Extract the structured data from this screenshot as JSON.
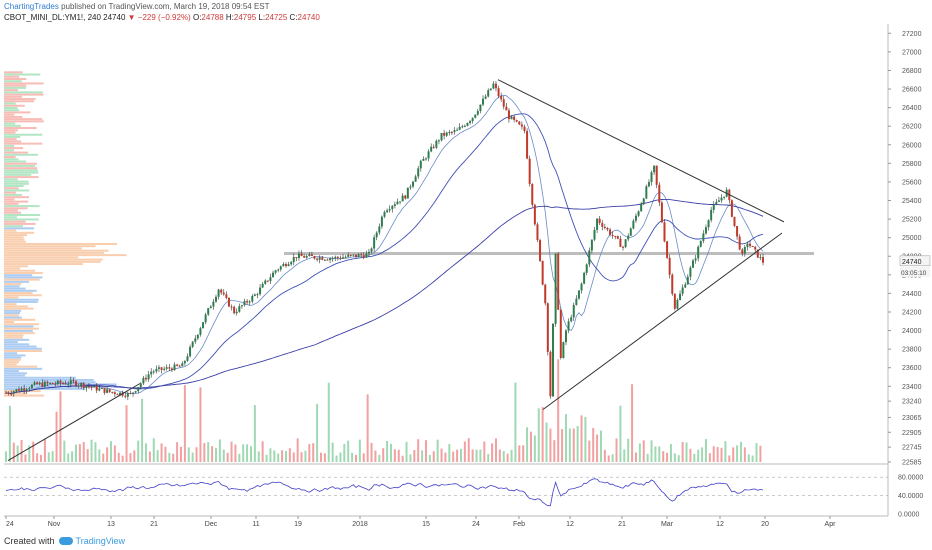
{
  "header": {
    "author": "ChartingTrades",
    "published": "published on TradingView.com, March 19, 2018 09:54 EST",
    "symbol": "CBOT_MINI_DL:YM1!, 240",
    "last": "24740",
    "change_arrow": "▼",
    "change": "−229 (−0.92%)",
    "o_label": "O:",
    "o": "24788",
    "h_label": "H:",
    "h": "24795",
    "l_label": "L:",
    "l": "24725",
    "c_label": "C:",
    "c": "24740"
  },
  "footer": {
    "created_with": "Created with",
    "brand": "TradingView"
  },
  "colors": {
    "up": "#2e7d4f",
    "down": "#c0392b",
    "ma": "#3f51b5",
    "trend": "#333333",
    "vol_up": "#9fd9b4",
    "vol_down": "#f2a0a0",
    "profile_up": "#a5e0b8",
    "profile_down": "#f6b0a8",
    "profile_val": "#9ec3f0",
    "profile_orange": "#f7c6a0"
  },
  "chart_data": {
    "type": "line",
    "title": "",
    "x_ticks": [
      "24",
      "Nov",
      "13",
      "21",
      "Dec",
      "11",
      "19",
      "2018",
      "15",
      "24",
      "Feb",
      "12",
      "21",
      "Mar",
      "12",
      "20",
      "Apr"
    ],
    "y_ticks": [
      27200,
      27000,
      26800,
      26600,
      26400,
      26200,
      26000,
      25800,
      25600,
      25400,
      25200,
      25000,
      24800,
      24600,
      24400,
      24200,
      24000,
      23800,
      23600,
      23400,
      23240,
      23065,
      22905,
      22745,
      22585
    ],
    "ylim": [
      22585,
      27300
    ],
    "last_price_label": "24740",
    "countdown_label": "03:05:10",
    "price_path": [
      {
        "x": "Oct 24",
        "y": 23330
      },
      {
        "x": "Oct 30",
        "y": 23420
      },
      {
        "x": "Nov 6",
        "y": 23440
      },
      {
        "x": "Nov 13",
        "y": 23340
      },
      {
        "x": "Nov 17",
        "y": 23310
      },
      {
        "x": "Nov 21",
        "y": 23560
      },
      {
        "x": "Nov 27",
        "y": 23620
      },
      {
        "x": "Dec 1",
        "y": 24100
      },
      {
        "x": "Dec 4",
        "y": 24450
      },
      {
        "x": "Dec 7",
        "y": 24200
      },
      {
        "x": "Dec 11",
        "y": 24380
      },
      {
        "x": "Dec 15",
        "y": 24650
      },
      {
        "x": "Dec 19",
        "y": 24800
      },
      {
        "x": "Dec 26",
        "y": 24780
      },
      {
        "x": "Jan 2",
        "y": 24820
      },
      {
        "x": "Jan 5",
        "y": 25300
      },
      {
        "x": "Jan 9",
        "y": 25450
      },
      {
        "x": "Jan 12",
        "y": 25800
      },
      {
        "x": "Jan 16",
        "y": 26100
      },
      {
        "x": "Jan 19",
        "y": 26150
      },
      {
        "x": "Jan 22",
        "y": 26300
      },
      {
        "x": "Jan 26",
        "y": 26650
      },
      {
        "x": "Jan 29",
        "y": 26300
      },
      {
        "x": "Feb 1",
        "y": 26150
      },
      {
        "x": "Feb 2",
        "y": 25600
      },
      {
        "x": "Feb 5",
        "y": 24300
      },
      {
        "x": "Feb 6",
        "y": 23300
      },
      {
        "x": "Feb 7",
        "y": 24800
      },
      {
        "x": "Feb 8",
        "y": 23700
      },
      {
        "x": "Feb 9",
        "y": 24000
      },
      {
        "x": "Feb 12",
        "y": 24500
      },
      {
        "x": "Feb 15",
        "y": 25200
      },
      {
        "x": "Feb 20",
        "y": 24900
      },
      {
        "x": "Feb 23",
        "y": 25300
      },
      {
        "x": "Feb 26",
        "y": 25750
      },
      {
        "x": "Mar 1",
        "y": 24600
      },
      {
        "x": "Mar 2",
        "y": 24250
      },
      {
        "x": "Mar 6",
        "y": 24800
      },
      {
        "x": "Mar 9",
        "y": 25300
      },
      {
        "x": "Mar 12",
        "y": 25500
      },
      {
        "x": "Mar 14",
        "y": 25000
      },
      {
        "x": "Mar 15",
        "y": 24800
      },
      {
        "x": "Mar 16",
        "y": 24950
      },
      {
        "x": "Mar 19",
        "y": 24740
      }
    ],
    "rsi_ticks": [
      "80.0000",
      "40.0000",
      "0.0000"
    ],
    "rsi_ylim": [
      0,
      100
    ]
  }
}
